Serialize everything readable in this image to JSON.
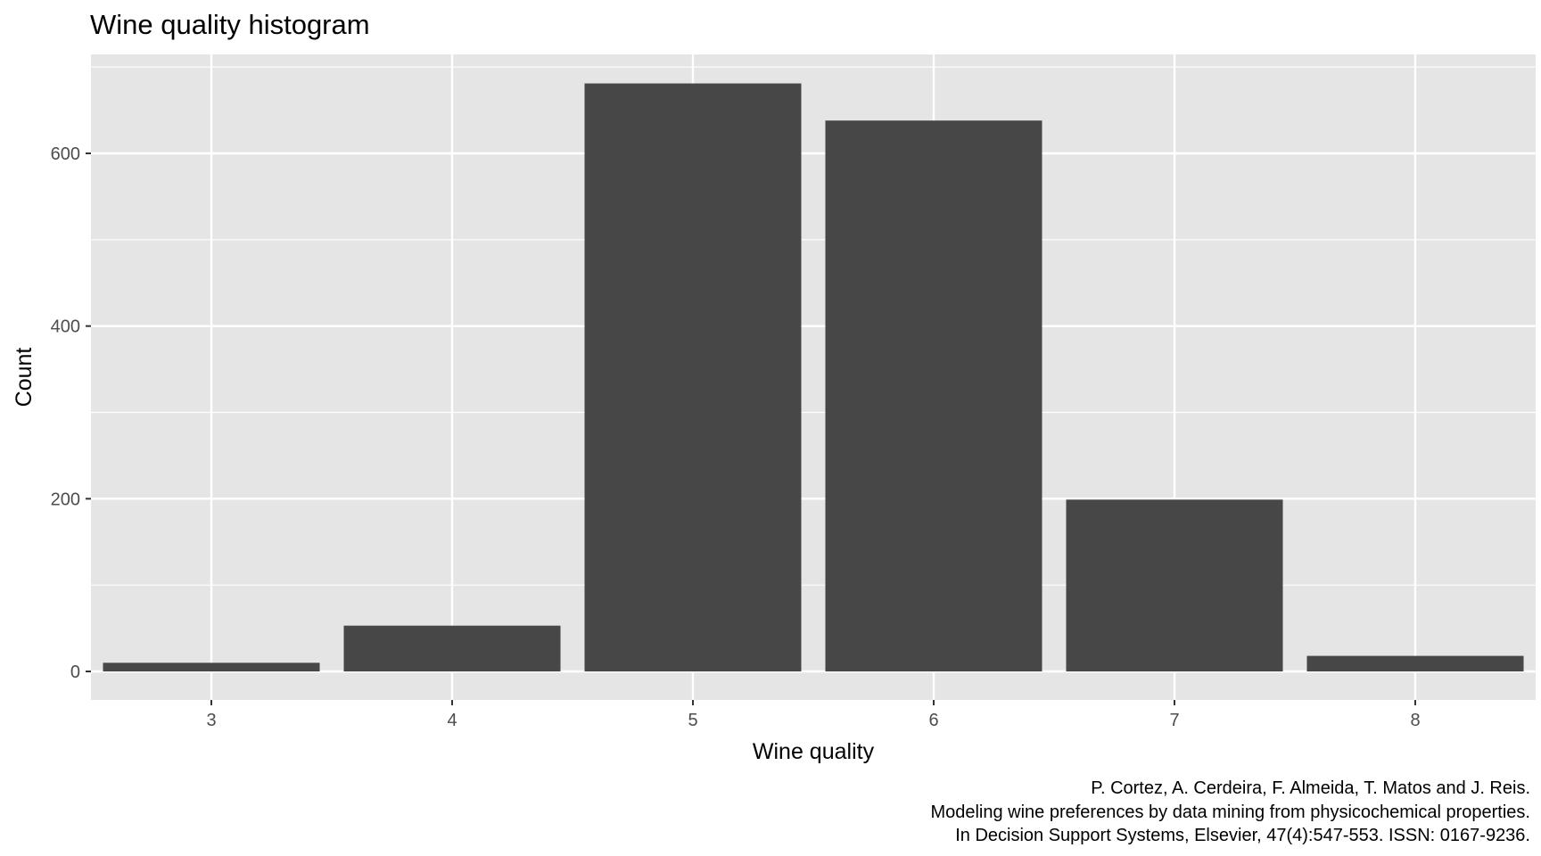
{
  "chart_data": {
    "type": "bar",
    "title": "Wine quality histogram",
    "xlabel": "Wine quality",
    "ylabel": "Count",
    "categories": [
      "3",
      "4",
      "5",
      "6",
      "7",
      "8"
    ],
    "values": [
      10,
      53,
      681,
      638,
      199,
      18
    ],
    "ylim": [
      0,
      716
    ],
    "y_ticks": [
      0,
      200,
      400,
      600
    ],
    "grid": true,
    "legend": "none",
    "caption": [
      "P. Cortez, A. Cerdeira, F. Almeida, T. Matos and J. Reis.",
      "Modeling wine preferences by data mining from physicochemical properties.",
      "In Decision Support Systems, Elsevier, 47(4):547-553. ISSN: 0167-9236."
    ]
  },
  "colors": {
    "panel_background": "#e5e5e5",
    "grid_line": "#ffffff",
    "bar_fill": "#474747",
    "tick_label": "#4d4d4d",
    "text": "#000000",
    "background": "#ffffff"
  }
}
